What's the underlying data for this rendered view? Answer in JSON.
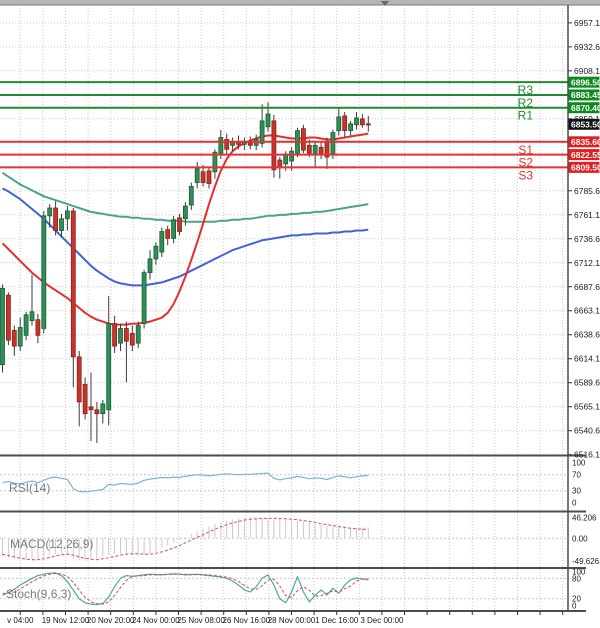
{
  "chart_data": {
    "type": "candlestick",
    "timeframe": "4H",
    "current_price": 6853.5,
    "ylim": [
      6515.8,
      6975.3
    ],
    "price_tick_step": 24.5,
    "price_tick_top": 6957.1,
    "price_ticks_shown": [
      6957.1,
      6932.6,
      6908.1,
      6859.1,
      6785.6,
      6761.1,
      6736.6,
      6712.1,
      6687.6,
      6663.1,
      6638.6,
      6614.1,
      6589.6,
      6565.1,
      6540.6,
      6516.1
    ],
    "date_labels": [
      "v 04:00",
      "19 Nov 12:00",
      "20 Nov 20:00",
      "24 Nov 00:00",
      "25 Nov 08:00",
      "26 Nov 16:00",
      "28 Nov 00:00",
      "1 Dec 16:00",
      "3 Dec 00:00"
    ],
    "pivots": {
      "resistance": [
        {
          "label": "R3",
          "value": 6896.5
        },
        {
          "label": "R2",
          "value": 6883.45
        },
        {
          "label": "R1",
          "value": 6870.4
        }
      ],
      "support": [
        {
          "label": "S1",
          "value": 6835.6
        },
        {
          "label": "S2",
          "value": 6822.55
        },
        {
          "label": "S3",
          "value": 6809.5
        }
      ]
    },
    "candles": [
      [
        6608,
        6690,
        6600,
        6686
      ],
      [
        6679,
        6682,
        6628,
        6633
      ],
      [
        6643,
        6648,
        6617,
        6627
      ],
      [
        6627,
        6656,
        6622,
        6646
      ],
      [
        6638,
        6662,
        6633,
        6659
      ],
      [
        6653,
        6700,
        6648,
        6662
      ],
      [
        6654,
        6660,
        6630,
        6638
      ],
      [
        6645,
        6765,
        6640,
        6760
      ],
      [
        6760,
        6772,
        6748,
        6768
      ],
      [
        6768,
        6775,
        6740,
        6745
      ],
      [
        6745,
        6762,
        6738,
        6757
      ],
      [
        6757,
        6770,
        6745,
        6765
      ],
      [
        6765,
        6768,
        6585,
        6616
      ],
      [
        6616,
        6622,
        6545,
        6570
      ],
      [
        6588,
        6595,
        6552,
        6558
      ],
      [
        6565,
        6600,
        6530,
        6562
      ],
      [
        6562,
        6570,
        6528,
        6558
      ],
      [
        6558,
        6572,
        6548,
        6568
      ],
      [
        6562,
        6678,
        6546,
        6650
      ],
      [
        6650,
        6658,
        6620,
        6627
      ],
      [
        6630,
        6650,
        6622,
        6645
      ],
      [
        6645,
        6652,
        6590,
        6632
      ],
      [
        6640,
        6648,
        6622,
        6628
      ],
      [
        6630,
        6652,
        6625,
        6648
      ],
      [
        6650,
        6705,
        6645,
        6702
      ],
      [
        6702,
        6725,
        6695,
        6716
      ],
      [
        6716,
        6733,
        6710,
        6729
      ],
      [
        6723,
        6748,
        6718,
        6744
      ],
      [
        6746,
        6750,
        6730,
        6737
      ],
      [
        6737,
        6760,
        6732,
        6756
      ],
      [
        6758,
        6762,
        6740,
        6744
      ],
      [
        6757,
        6774,
        6750,
        6770
      ],
      [
        6771,
        6794,
        6766,
        6790
      ],
      [
        6794,
        6815,
        6788,
        6808
      ],
      [
        6805,
        6812,
        6790,
        6794
      ],
      [
        6806,
        6810,
        6788,
        6793
      ],
      [
        6805,
        6828,
        6798,
        6825
      ],
      [
        6824,
        6848,
        6818,
        6840
      ],
      [
        6838,
        6844,
        6822,
        6828
      ],
      [
        6832,
        6840,
        6826,
        6836
      ],
      [
        6836,
        6842,
        6828,
        6833
      ],
      [
        6833,
        6840,
        6827,
        6835
      ],
      [
        6835,
        6841,
        6828,
        6832
      ],
      [
        6832,
        6843,
        6827,
        6838
      ],
      [
        6834,
        6874,
        6830,
        6857
      ],
      [
        6851,
        6876,
        6846,
        6864
      ],
      [
        6857,
        6863,
        6799,
        6807
      ],
      [
        6817,
        6820,
        6798,
        6809
      ],
      [
        6813,
        6826,
        6806,
        6823
      ],
      [
        6816,
        6830,
        6806,
        6826
      ],
      [
        6824,
        6850,
        6820,
        6847
      ],
      [
        6849,
        6853,
        6824,
        6827
      ],
      [
        6832,
        6838,
        6820,
        6824
      ],
      [
        6824,
        6836,
        6810,
        6832
      ],
      [
        6830,
        6836,
        6818,
        6823
      ],
      [
        6835,
        6840,
        6808,
        6820
      ],
      [
        6823,
        6848,
        6818,
        6845
      ],
      [
        6847,
        6870,
        6842,
        6861
      ],
      [
        6862,
        6866,
        6840,
        6847
      ],
      [
        6847,
        6857,
        6842,
        6854
      ],
      [
        6853,
        6866,
        6848,
        6860
      ],
      [
        6859,
        6864,
        6850,
        6853
      ],
      [
        6854,
        6862,
        6846,
        6853.5
      ]
    ],
    "ma_red": [
      6732,
      6726,
      6720,
      6714,
      6708,
      6702,
      6697,
      6692,
      6688,
      6684,
      6680,
      6676,
      6671,
      6666,
      6661,
      6657,
      6654,
      6652,
      6650,
      6649,
      6649,
      6649,
      6650,
      6650,
      6651,
      6652,
      6654,
      6656,
      6661,
      6670,
      6683,
      6698,
      6715,
      6733,
      6752,
      6772,
      6790,
      6806,
      6818,
      6826,
      6831,
      6834,
      6837,
      6839,
      6841,
      6842,
      6842,
      6841,
      6840,
      6839,
      6839,
      6839,
      6840,
      6840,
      6839,
      6838,
      6838,
      6839,
      6840,
      6841,
      6842,
      6843,
      6844
    ],
    "ma_green": [
      6804,
      6800,
      6796,
      6792,
      6789,
      6786,
      6783,
      6780,
      6778,
      6776,
      6774,
      6772,
      6770,
      6768,
      6766,
      6764,
      6763,
      6762,
      6761,
      6760,
      6759,
      6759,
      6758,
      6758,
      6757,
      6757,
      6756,
      6756,
      6755,
      6755,
      6755,
      6754,
      6754,
      6754,
      6754,
      6754,
      6754,
      6755,
      6755,
      6756,
      6756,
      6757,
      6757,
      6758,
      6759,
      6760,
      6760,
      6761,
      6761,
      6762,
      6762,
      6763,
      6763,
      6764,
      6764,
      6765,
      6766,
      6767,
      6768,
      6769,
      6770,
      6771,
      6772
    ],
    "ma_blue": [
      6788,
      6785,
      6781,
      6777,
      6772,
      6767,
      6762,
      6757,
      6751,
      6745,
      6739,
      6733,
      6727,
      6721,
      6715,
      6709,
      6704,
      6700,
      6696,
      6693,
      6691,
      6690,
      6689,
      6689,
      6689,
      6690,
      6691,
      6692,
      6694,
      6696,
      6698,
      6701,
      6704,
      6707,
      6710,
      6713,
      6716,
      6719,
      6722,
      6725,
      6727,
      6729,
      6731,
      6733,
      6735,
      6736,
      6737,
      6738,
      6739,
      6740,
      6740,
      6741,
      6741,
      6742,
      6742,
      6742,
      6743,
      6743,
      6744,
      6744,
      6745,
      6745,
      6746
    ],
    "indicators": {
      "rsi": {
        "label": "RSI(14)",
        "period": 14,
        "range": [
          0,
          100
        ],
        "levels": [
          70,
          30
        ],
        "scale_labels": [
          100,
          70,
          30,
          0
        ],
        "values": [
          50,
          53,
          49,
          47,
          51,
          54,
          50,
          56,
          62,
          64,
          61,
          58,
          35,
          28,
          27,
          29,
          31,
          33,
          46,
          44,
          48,
          47,
          46,
          49,
          56,
          59,
          61,
          63,
          62,
          64,
          63,
          66,
          68,
          70,
          69,
          67,
          69,
          71,
          72,
          71,
          70,
          71,
          71,
          72,
          73,
          74,
          61,
          57,
          60,
          62,
          66,
          63,
          60,
          62,
          61,
          58,
          63,
          67,
          65,
          62,
          65,
          67,
          68
        ]
      },
      "macd": {
        "label": "MACD(12,26,9)",
        "max_label": "46.206",
        "zero_label": "0.00",
        "min_label": "-49.626",
        "max": 46.206,
        "min": -49.626,
        "hist": [
          -40,
          -42,
          -45,
          -46,
          -47,
          -46,
          -44,
          -41,
          -37,
          -34,
          -33,
          -36,
          -45,
          -49,
          -49.6,
          -48,
          -45,
          -41,
          -37,
          -35,
          -34,
          -36,
          -38,
          -39,
          -37,
          -33,
          -27,
          -21,
          -15,
          -9,
          -3,
          3,
          9,
          15,
          21,
          27,
          32,
          36,
          39,
          42,
          44,
          45.5,
          46.2,
          46,
          45.5,
          45,
          44,
          43,
          42,
          40,
          38,
          36,
          34,
          31,
          29,
          27,
          26,
          25,
          24,
          23.5,
          23.5,
          24,
          24
        ],
        "signal": [
          -35,
          -38,
          -41,
          -44,
          -46,
          -47,
          -47,
          -45,
          -42,
          -39,
          -36,
          -35,
          -37,
          -41,
          -44,
          -46,
          -47,
          -45,
          -43,
          -40,
          -37,
          -35,
          -34,
          -34,
          -35,
          -35,
          -33,
          -30,
          -26,
          -21,
          -16,
          -10,
          -4,
          2,
          8,
          14,
          20,
          25,
          30,
          34,
          37,
          40,
          42,
          43,
          43.5,
          44,
          44,
          43.5,
          43,
          42,
          41,
          39,
          37,
          35,
          32,
          30,
          28,
          26,
          24,
          22,
          21,
          20,
          20
        ]
      },
      "stoch": {
        "label": "Stoch(9,6,3)",
        "range": [
          0,
          100
        ],
        "levels": [
          80,
          20
        ],
        "scale_labels": [
          100,
          80,
          20,
          0
        ],
        "k": [
          30,
          38,
          48,
          60,
          70,
          80,
          88,
          92,
          95,
          96,
          88,
          70,
          45,
          20,
          8,
          4,
          3,
          6,
          25,
          55,
          80,
          88,
          86,
          88,
          90,
          92,
          91,
          90,
          92,
          93,
          92,
          90,
          91,
          92,
          90,
          88,
          86,
          84,
          80,
          72,
          60,
          46,
          40,
          55,
          80,
          90,
          60,
          20,
          8,
          40,
          85,
          40,
          11,
          30,
          46,
          31,
          51,
          36,
          60,
          76,
          81,
          78,
          76
        ],
        "d": [
          35,
          38,
          39,
          49,
          59,
          70,
          79,
          87,
          92,
          94,
          93,
          85,
          68,
          45,
          24,
          11,
          5,
          4,
          11,
          29,
          53,
          74,
          85,
          87,
          88,
          90,
          91,
          91,
          91,
          92,
          92,
          92,
          91,
          91,
          91,
          90,
          88,
          86,
          83,
          79,
          71,
          59,
          49,
          47,
          58,
          75,
          77,
          57,
          29,
          23,
          44,
          55,
          45,
          27,
          29,
          36,
          43,
          39,
          49,
          57,
          72,
          78,
          78
        ]
      }
    },
    "colors": {
      "bull_body": "#2f8f57",
      "bull_border": "#1b5c36",
      "bear_body": "#c6352c",
      "bear_border": "#8a231c",
      "wick": "#3c3c3c",
      "ma_red": "#e82c2c",
      "ma_green": "#4aa583",
      "ma_blue": "#3f62d9",
      "pivot_r_line": "#1f8a2f",
      "pivot_s_line": "#e23333",
      "badge_r": "#0c8a1e",
      "badge_s": "#e01f1f",
      "badge_current": "#121212",
      "rsi_line": "#7fb3d5",
      "macd_hist": "#c9c9c9",
      "signal_line": "#d34f4f",
      "stoch_k": "#4ba8a0",
      "stoch_d": "#d34f4f",
      "grid": "#c9c9c9",
      "axis_text": "#1a1a1a",
      "frame": "#4d4d4d",
      "top_bar": "#b5b5b5"
    }
  }
}
